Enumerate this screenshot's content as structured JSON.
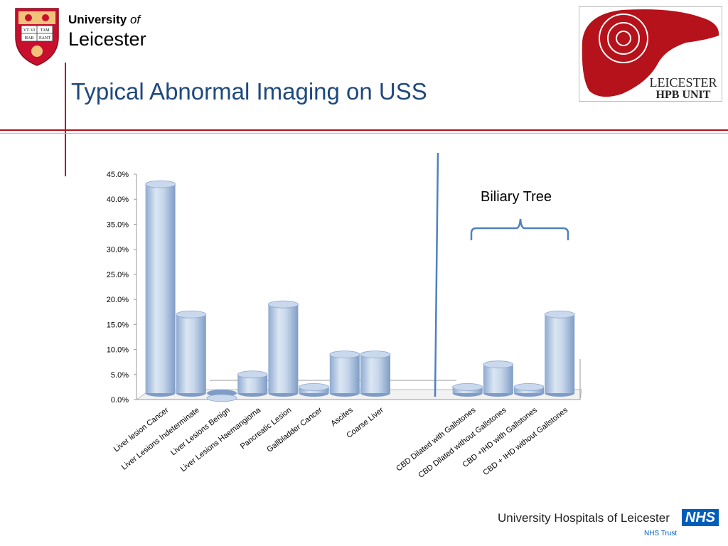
{
  "header": {
    "university_word": "University",
    "of_word": "of",
    "city_word": "Leicester",
    "slide_title": "Typical Abnormal Imaging on USS",
    "crest_text": [
      "VT·VI",
      "TAM",
      "HAB",
      "EANT"
    ],
    "hpb_logo_line1": "LEICESTER",
    "hpb_logo_line2": "HPB UNIT"
  },
  "annotation": {
    "biliary_tree": "Biliary Tree"
  },
  "footer": {
    "hospital_text": "University Hospitals of Leicester",
    "nhs_badge": "NHS",
    "nhs_trust": "NHS Trust"
  },
  "colors": {
    "brand_red": "#b5121b",
    "title_blue": "#1f497d",
    "bar_fill": "#b8cce4",
    "divider_blue": "#4f81bd",
    "nhs_blue": "#005eb8"
  },
  "chart_data": {
    "type": "bar",
    "title": "",
    "xlabel": "",
    "ylabel": "",
    "ylim": [
      0,
      45
    ],
    "y_tick_format": "percent_1dp",
    "yticks": [
      "0.0%",
      "5.0%",
      "10.0%",
      "15.0%",
      "20.0%",
      "25.0%",
      "30.0%",
      "35.0%",
      "40.0%",
      "45.0%"
    ],
    "grid": false,
    "style": "3d-cylinder",
    "groups": [
      {
        "name": "",
        "categories": [
          "Liver lesion Cancer",
          "Liver Lesions Indeterminate",
          "Liver Lesions Benign",
          "Liver Lesions Haemangioma",
          "Pancreatic Lesion",
          "Gallbladder Cancer",
          "Ascites",
          "Coarse Liver"
        ],
        "values": [
          43,
          17,
          0.3,
          5,
          19,
          2.5,
          9,
          9
        ]
      },
      {
        "name": "Biliary Tree",
        "categories": [
          "CBD Dilated with Gallstones",
          "CBD Dilated without Gallstones",
          "CBD +IHD with Gallstones",
          "CBD + IHD without Gallstones"
        ],
        "values": [
          2.5,
          7,
          2.5,
          17
        ]
      }
    ]
  }
}
